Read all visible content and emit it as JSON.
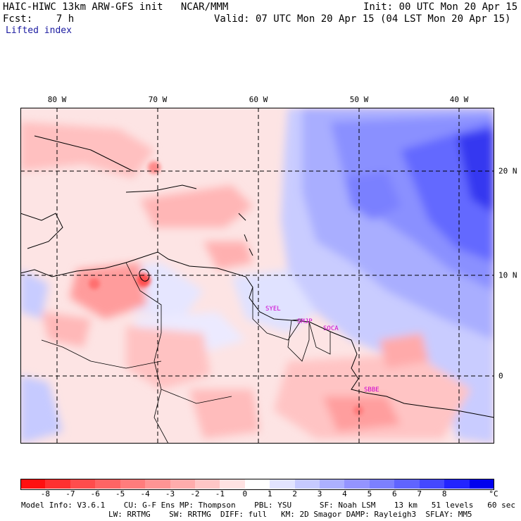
{
  "header": {
    "title_left": "HAIC-HIWC 13km ARW-GFS init   NCAR/MMM",
    "fcst": "Fcst:    7 h",
    "init": "Init: 00 UTC Mon 20 Apr 15",
    "valid": "Valid: 07 UTC Mon 20 Apr 15 (04 LST Mon 20 Apr 15)",
    "field": "Lifted index"
  },
  "map": {
    "lon_labels": [
      "80 W",
      "70 W",
      "60 W",
      "50 W",
      "40 W"
    ],
    "lat_labels": [
      "20 N",
      "10 N",
      "0"
    ],
    "station_labels": [
      "SYEL",
      "SMJP",
      "SOCA",
      "SBBE"
    ],
    "colors": {
      "neg_strong": "#ff1a1a",
      "neg_light": "#ffd6d6",
      "zero": "#ffffff",
      "pos_light": "#d9dcff",
      "pos_strong": "#1010e6"
    }
  },
  "colorbar": {
    "labels": [
      "-8",
      "-7",
      "-6",
      "-5",
      "-4",
      "-3",
      "-2",
      "-1",
      "0",
      "1",
      "2",
      "3",
      "4",
      "5",
      "6",
      "7",
      "8"
    ],
    "unit": "°C",
    "colors": [
      "#ff1010",
      "#ff3030",
      "#ff4c4c",
      "#ff6464",
      "#ff7c7c",
      "#ff9494",
      "#ffacac",
      "#ffc6c6",
      "#ffe2e2",
      "#ffffff",
      "#e2e4ff",
      "#c6caff",
      "#acb0ff",
      "#9494ff",
      "#7c80ff",
      "#6064ff",
      "#4448ff",
      "#2224ff",
      "#0000ee"
    ]
  },
  "footer": {
    "line1": "Model Info: V3.6.1    CU: G-F Ens MP: Thompson    PBL: YSU      SF: Noah LSM    13 km   51 levels   60 sec",
    "line2": "LW: RRTMG    SW: RRTMG  DIFF: full   KM: 2D Smagor DAMP: Rayleigh3  SFLAY: MM5"
  }
}
